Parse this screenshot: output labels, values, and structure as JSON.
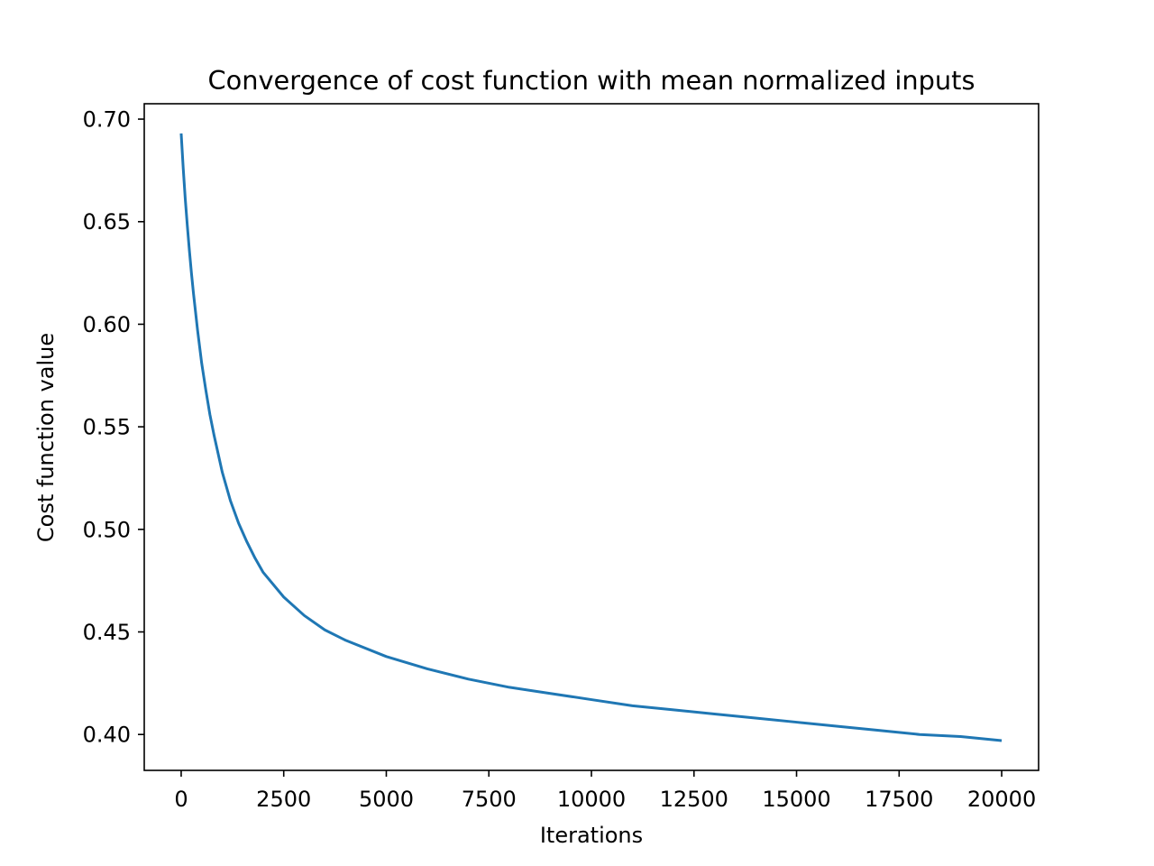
{
  "chart_data": {
    "type": "line",
    "title": "Convergence of cost function with mean normalized inputs",
    "xlabel": "Iterations",
    "ylabel": "Cost function value",
    "xlim": [
      -900,
      20900
    ],
    "ylim": [
      0.3825,
      0.7075
    ],
    "xticks": [
      0,
      2500,
      5000,
      7500,
      10000,
      12500,
      15000,
      17500,
      20000
    ],
    "xtick_labels": [
      "0",
      "2500",
      "5000",
      "7500",
      "10000",
      "12500",
      "15000",
      "17500",
      "20000"
    ],
    "yticks": [
      0.4,
      0.45,
      0.5,
      0.55,
      0.6,
      0.65,
      0.7
    ],
    "ytick_labels": [
      "0.40",
      "0.45",
      "0.50",
      "0.55",
      "0.60",
      "0.65",
      "0.70"
    ],
    "grid": false,
    "legend": "none",
    "series": [
      {
        "color": "#1f77b4",
        "x": [
          0,
          50,
          100,
          150,
          200,
          250,
          300,
          400,
          500,
          600,
          700,
          800,
          1000,
          1200,
          1400,
          1600,
          1800,
          2000,
          2500,
          3000,
          3500,
          4000,
          5000,
          6000,
          7000,
          8000,
          9000,
          10000,
          11000,
          12000,
          13000,
          14000,
          15000,
          16000,
          17000,
          18000,
          19000,
          20000
        ],
        "y": [
          0.693,
          0.676,
          0.661,
          0.648,
          0.636,
          0.625,
          0.615,
          0.597,
          0.581,
          0.568,
          0.556,
          0.546,
          0.528,
          0.514,
          0.503,
          0.494,
          0.486,
          0.479,
          0.467,
          0.458,
          0.451,
          0.446,
          0.438,
          0.432,
          0.427,
          0.423,
          0.42,
          0.417,
          0.414,
          0.412,
          0.41,
          0.408,
          0.406,
          0.404,
          0.402,
          0.4,
          0.399,
          0.397
        ]
      }
    ]
  }
}
